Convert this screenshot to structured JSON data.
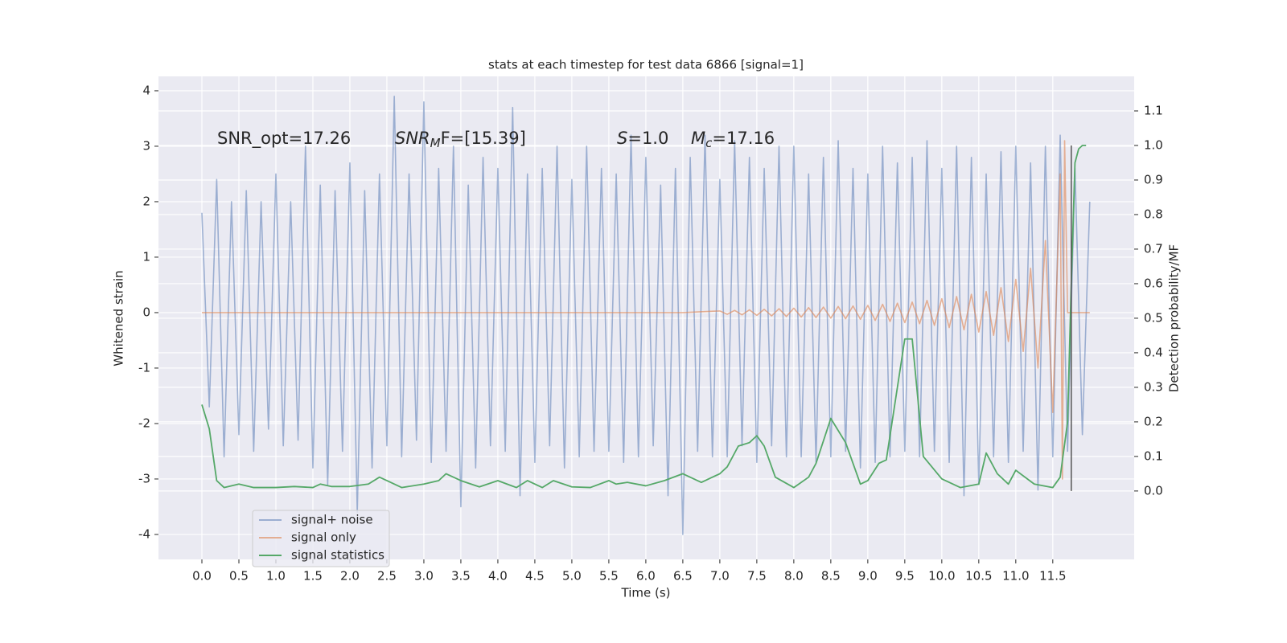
{
  "chart_data": {
    "type": "line",
    "title": "stats at each timestep for test data 6866 [signal=1]",
    "xlabel": "Time (s)",
    "ylabel": "Whitened strain",
    "y2label": "Detection probability/MF",
    "xlim": [
      -0.587,
      12.6
    ],
    "ylim": [
      -4.45,
      4.26
    ],
    "y2lim": [
      -0.198,
      1.2
    ],
    "xticks": [
      {
        "value": 0,
        "label": "0.0"
      },
      0.5,
      {
        "value": 1,
        "label": "1.0"
      },
      1.5,
      {
        "value": 2,
        "label": "2.0"
      },
      2.5,
      {
        "value": 3,
        "label": "3.0"
      },
      3.5,
      {
        "value": 4,
        "label": "4.0"
      },
      4.5,
      {
        "value": 5,
        "label": "5.0"
      },
      5.5,
      {
        "value": 6,
        "label": "6.0"
      },
      6.5,
      {
        "value": 7,
        "label": "7.0"
      },
      7.5,
      {
        "value": 8,
        "label": "8.0"
      },
      8.5,
      {
        "value": 9,
        "label": "9.0"
      },
      9.5,
      {
        "value": 10,
        "label": "10.0"
      },
      10.5,
      {
        "value": 11,
        "label": "11.0"
      },
      11.5
    ],
    "yticks": [
      -4,
      -3,
      -2,
      -1,
      0,
      1,
      2,
      3,
      4
    ],
    "y2ticks": [
      {
        "value": 0,
        "label": "0.0"
      },
      0.1,
      0.2,
      0.3,
      0.4,
      0.5,
      0.6,
      0.7,
      0.8,
      0.9,
      {
        "value": 1,
        "label": "1.0"
      },
      1.1
    ],
    "grid": true,
    "legend": "lower left",
    "annotations": [
      {
        "text": "SNR_opt=17.26"
      },
      {
        "base": "SNR",
        "sub": "M",
        "rest": "F=[15.39]"
      },
      {
        "base": "S",
        "rest": "=1.0"
      },
      {
        "base": "M",
        "sub": "c",
        "rest": "=17.16"
      }
    ],
    "vline": {
      "x": 11.75,
      "y2": [
        0,
        1
      ],
      "color": "#555555"
    },
    "series": [
      {
        "name": "signal+ noise",
        "color": "#4c72b0",
        "opacity": 0.5,
        "x": [
          0,
          0.1,
          0.2,
          0.3,
          0.4,
          0.5,
          0.6,
          0.7,
          0.8,
          0.9,
          1,
          1.1,
          1.2,
          1.3,
          1.4,
          1.5,
          1.6,
          1.7,
          1.8,
          1.9,
          2,
          2.1,
          2.2,
          2.3,
          2.4,
          2.5,
          2.6,
          2.7,
          2.8,
          2.9,
          3,
          3.1,
          3.2,
          3.3,
          3.4,
          3.5,
          3.6,
          3.7,
          3.8,
          3.9,
          4,
          4.1,
          4.2,
          4.3,
          4.4,
          4.5,
          4.6,
          4.7,
          4.8,
          4.9,
          5,
          5.1,
          5.2,
          5.3,
          5.4,
          5.5,
          5.6,
          5.7,
          5.8,
          5.9,
          6,
          6.1,
          6.2,
          6.3,
          6.4,
          6.5,
          6.6,
          6.7,
          6.8,
          6.9,
          7,
          7.1,
          7.2,
          7.3,
          7.4,
          7.5,
          7.6,
          7.7,
          7.8,
          7.9,
          8,
          8.1,
          8.2,
          8.3,
          8.4,
          8.5,
          8.6,
          8.7,
          8.8,
          8.9,
          9,
          9.1,
          9.2,
          9.3,
          9.4,
          9.5,
          9.6,
          9.7,
          9.8,
          9.9,
          10,
          10.1,
          10.2,
          10.3,
          10.4,
          10.5,
          10.6,
          10.7,
          10.8,
          10.9,
          11,
          11.1,
          11.2,
          11.3,
          11.4,
          11.5,
          11.6,
          11.7,
          11.8,
          11.9,
          12
        ],
        "values": [
          1.8,
          -1.7,
          2.4,
          -2.6,
          2.0,
          -2.2,
          2.2,
          -2.5,
          2.0,
          -2.1,
          2.5,
          -2.4,
          2.0,
          -2.3,
          3.0,
          -2.8,
          2.3,
          -3.1,
          2.2,
          -2.5,
          2.7,
          -3.6,
          2.2,
          -2.8,
          2.5,
          -2.4,
          3.9,
          -2.6,
          2.5,
          -2.3,
          3.8,
          -2.7,
          2.6,
          -2.5,
          3.0,
          -3.5,
          2.3,
          -2.8,
          2.8,
          -2.4,
          2.6,
          -2.5,
          3.7,
          -3.3,
          2.5,
          -2.7,
          2.6,
          -2.4,
          3.0,
          -2.8,
          2.4,
          -2.6,
          3.0,
          -2.5,
          2.6,
          -2.5,
          2.5,
          -2.7,
          3.2,
          -2.6,
          2.8,
          -2.4,
          2.3,
          -3.3,
          2.6,
          -4.0,
          2.8,
          -2.5,
          3.2,
          -2.6,
          2.4,
          -2.6,
          3.1,
          -2.4,
          2.8,
          -2.7,
          2.6,
          -2.4,
          3.0,
          -2.6,
          3.0,
          -2.6,
          2.5,
          -2.7,
          2.8,
          -2.6,
          3.1,
          -2.5,
          2.6,
          -2.8,
          2.5,
          -2.7,
          3.0,
          -2.6,
          2.7,
          -2.5,
          2.8,
          -2.6,
          3.1,
          -2.5,
          2.6,
          -2.7,
          3.0,
          -3.3,
          2.8,
          -3.1,
          2.5,
          -2.6,
          2.9,
          -2.7,
          3.0,
          -2.5,
          2.7,
          -3.2,
          3.0,
          -2.6,
          3.2,
          -2.5,
          2.6,
          -2.2,
          2.0
        ]
      },
      {
        "name": "signal only",
        "color": "#dd8452",
        "opacity": 0.6,
        "x": [
          0,
          6.5,
          7,
          7.1,
          7.2,
          7.3,
          7.4,
          7.5,
          7.6,
          7.7,
          7.8,
          7.9,
          8,
          8.1,
          8.2,
          8.3,
          8.4,
          8.5,
          8.6,
          8.7,
          8.8,
          8.9,
          9,
          9.1,
          9.2,
          9.3,
          9.4,
          9.5,
          9.6,
          9.7,
          9.8,
          9.9,
          10,
          10.1,
          10.2,
          10.3,
          10.4,
          10.5,
          10.6,
          10.7,
          10.8,
          10.9,
          11,
          11.1,
          11.2,
          11.3,
          11.4,
          11.5,
          11.6,
          11.63,
          11.66,
          11.7,
          12
        ],
        "values": [
          0,
          0,
          0.03,
          -0.03,
          0.04,
          -0.04,
          0.05,
          -0.05,
          0.06,
          -0.06,
          0.07,
          -0.07,
          0.08,
          -0.08,
          0.09,
          -0.09,
          0.1,
          -0.1,
          0.11,
          -0.11,
          0.12,
          -0.12,
          0.13,
          -0.14,
          0.15,
          -0.16,
          0.17,
          -0.18,
          0.19,
          -0.2,
          0.22,
          -0.23,
          0.25,
          -0.27,
          0.29,
          -0.31,
          0.33,
          -0.35,
          0.38,
          -0.41,
          0.45,
          -0.52,
          0.6,
          -0.7,
          0.8,
          -1.0,
          1.3,
          -1.8,
          2.5,
          -3.0,
          3.1,
          0,
          0
        ]
      },
      {
        "name": "signal statistics",
        "color": "#55a868",
        "opacity": 1,
        "axis": "y2",
        "x": [
          0,
          0.1,
          0.2,
          0.3,
          0.5,
          0.7,
          1,
          1.25,
          1.5,
          1.6,
          1.75,
          2,
          2.25,
          2.4,
          2.5,
          2.7,
          3,
          3.2,
          3.3,
          3.5,
          3.75,
          4,
          4.25,
          4.4,
          4.6,
          4.75,
          5,
          5.25,
          5.5,
          5.6,
          5.75,
          6,
          6.25,
          6.5,
          6.75,
          7,
          7.1,
          7.25,
          7.4,
          7.5,
          7.6,
          7.75,
          8,
          8.2,
          8.3,
          8.5,
          8.7,
          8.9,
          9,
          9.15,
          9.25,
          9.4,
          9.5,
          9.6,
          9.75,
          10,
          10.25,
          10.5,
          10.6,
          10.75,
          10.9,
          11,
          11.25,
          11.5,
          11.6,
          11.7,
          11.75,
          11.8,
          11.85,
          11.9,
          11.95
        ],
        "values": [
          0.25,
          0.18,
          0.03,
          0.01,
          0.02,
          0.01,
          0.01,
          0.013,
          0.01,
          0.02,
          0.013,
          0.013,
          0.02,
          0.04,
          0.03,
          0.01,
          0.02,
          0.03,
          0.05,
          0.03,
          0.012,
          0.03,
          0.01,
          0.03,
          0.01,
          0.03,
          0.012,
          0.01,
          0.03,
          0.02,
          0.025,
          0.015,
          0.03,
          0.05,
          0.025,
          0.05,
          0.07,
          0.13,
          0.14,
          0.16,
          0.13,
          0.04,
          0.01,
          0.04,
          0.08,
          0.21,
          0.14,
          0.02,
          0.03,
          0.08,
          0.09,
          0.3,
          0.44,
          0.44,
          0.1,
          0.035,
          0.01,
          0.02,
          0.11,
          0.05,
          0.02,
          0.06,
          0.02,
          0.01,
          0.04,
          0.2,
          0.6,
          0.95,
          0.99,
          1.0,
          1.0
        ]
      }
    ]
  }
}
